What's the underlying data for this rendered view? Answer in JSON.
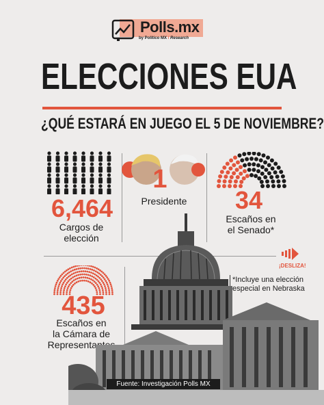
{
  "brand": {
    "name": "Polls.mx",
    "byline": "by Político MX",
    "partner": "Research",
    "accent": "#e2553d",
    "logo_bg": "#f0a994"
  },
  "header": {
    "title": "ELECCIONES EUA",
    "subtitle": "¿QUÉ ESTARÁ EN JUEGO EL 5 DE NOVIEMBRE?"
  },
  "stats": {
    "cargos": {
      "value": "6,464",
      "label_line1": "Cargos de",
      "label_line2": "elección"
    },
    "presidente": {
      "value": "1",
      "label": "Presidente"
    },
    "senado": {
      "value": "34",
      "label_line1": "Escaños en",
      "label_line2": "el Senado*"
    },
    "camara": {
      "value": "435",
      "label_line1": "Escaños en",
      "label_line2": "la Cámara de",
      "label_line3": "Representantes"
    }
  },
  "note": {
    "line1": "*Incluye una elección",
    "line2": "especial en Nebraska"
  },
  "swipe": {
    "label": "¡DESLIZA!"
  },
  "source": {
    "text": "Fuente: Investigación Polls MX"
  }
}
